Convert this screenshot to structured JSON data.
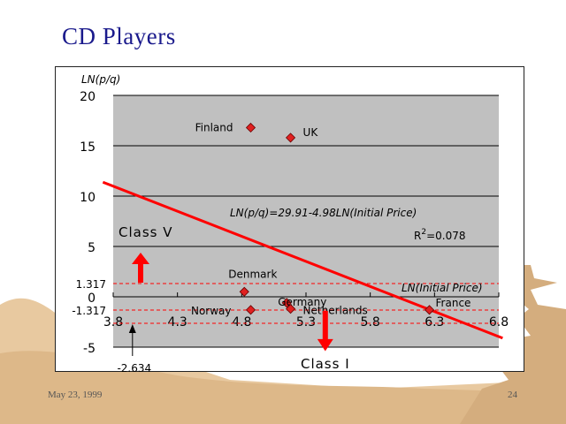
{
  "slide": {
    "title": "CD  Players",
    "date": "May 23, 1999",
    "page_number": "24"
  },
  "colors": {
    "title": "#1a1a8c",
    "plot_background": "#c0c0c0",
    "markers": "#e02020",
    "regression_line": "#ff0000",
    "background_art": "#e8c9a0"
  },
  "chart_data": {
    "type": "scatter",
    "ylabel": "LN(p/q)",
    "xlabel": "LN(Initial Price)",
    "xlim": [
      3.8,
      6.8
    ],
    "ylim": [
      -5,
      20
    ],
    "x_ticks": [
      "3.8",
      "4.3",
      "4.8",
      "5.3",
      "5.8",
      "6.3",
      "6.8"
    ],
    "y_ticks": [
      "20",
      "15",
      "10",
      "5",
      "0",
      "-5"
    ],
    "grid": true,
    "points": [
      {
        "label": "Finland",
        "x": 4.87,
        "y": 16.8
      },
      {
        "label": "UK",
        "x": 5.18,
        "y": 15.8
      },
      {
        "label": "Denmark",
        "x": 4.82,
        "y": 0.5
      },
      {
        "label": "Germany",
        "x": 5.15,
        "y": -0.6
      },
      {
        "label": "Norway",
        "x": 4.87,
        "y": -1.3
      },
      {
        "label": "Netherlands",
        "x": 5.18,
        "y": -1.2
      },
      {
        "label": "France",
        "x": 6.26,
        "y": -1.3
      }
    ],
    "regression": {
      "equation": "LN(p/q)=29.91-4.98LN(Initial Price)",
      "r_squared": "R2=0.078",
      "r_label": "R",
      "r_exp": "2",
      "r_value": "=0.078",
      "intercept": 29.91,
      "slope": -4.98
    },
    "reference_lines": [
      {
        "label": "1.317",
        "y": 1.317
      },
      {
        "label": "-1.317",
        "y": -1.317
      }
    ],
    "annotations": {
      "class_v": "Class V",
      "class_i": "Class I",
      "lower_marker": "-2.634",
      "lower_marker_value": -2.634
    }
  }
}
